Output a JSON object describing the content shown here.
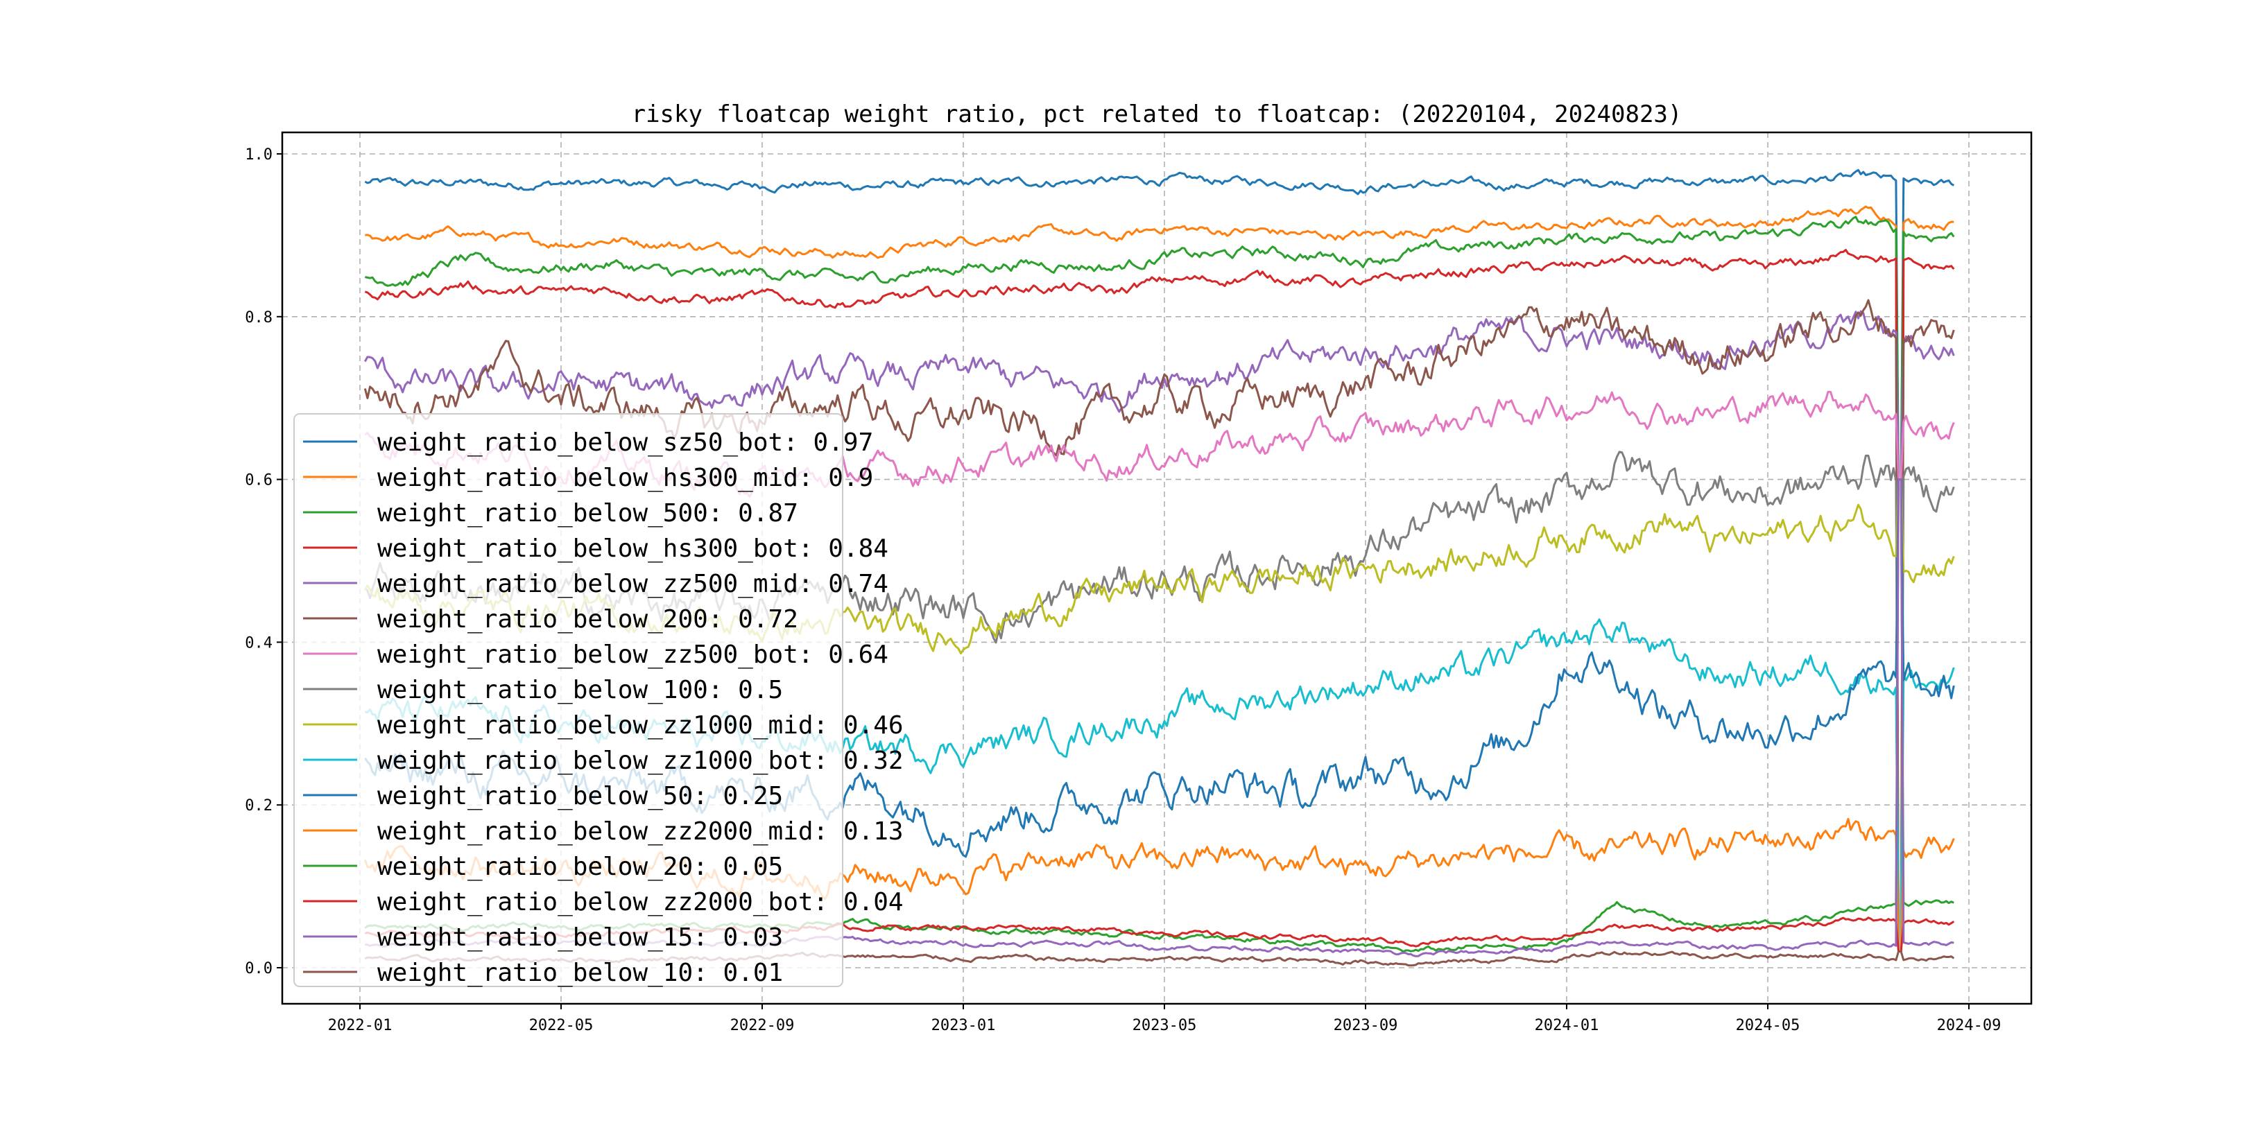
{
  "chart_data": {
    "type": "line",
    "title": "risky floatcap weight ratio, pct related to floatcap: (20220104, 20240823)",
    "xlabel": "",
    "ylabel": "",
    "ylim": [
      -0.045,
      1.055
    ],
    "xlim": [
      "2021-11-01",
      "2024-10-10"
    ],
    "grid": true,
    "legend_placement": "center-left",
    "x_ticks": [
      "2022-01",
      "2022-05",
      "2022-09",
      "2023-01",
      "2023-05",
      "2023-09",
      "2024-01",
      "2024-05",
      "2024-09"
    ],
    "y_ticks": [
      "0.0",
      "0.2",
      "0.4",
      "0.6",
      "0.8",
      "1.0"
    ],
    "x": [
      "2022-01",
      "2022-02",
      "2022-03",
      "2022-04",
      "2022-05",
      "2022-06",
      "2022-07",
      "2022-08",
      "2022-09",
      "2022-10",
      "2022-11",
      "2022-12",
      "2023-01",
      "2023-02",
      "2023-03",
      "2023-04",
      "2023-05",
      "2023-06",
      "2023-07",
      "2023-08",
      "2023-09",
      "2023-10",
      "2023-11",
      "2023-12",
      "2024-01",
      "2024-02",
      "2024-03",
      "2024-04",
      "2024-05",
      "2024-06",
      "2024-07",
      "2024-08"
    ],
    "series": [
      {
        "name": "weight_ratio_below_sz50_bot",
        "legend_value": "0.97",
        "color": "#1f77b4",
        "values": [
          0.965,
          0.963,
          0.965,
          0.962,
          0.964,
          0.963,
          0.964,
          0.962,
          0.961,
          0.963,
          0.96,
          0.962,
          0.963,
          0.965,
          0.966,
          0.967,
          0.968,
          0.967,
          0.966,
          0.964,
          0.958,
          0.962,
          0.963,
          0.961,
          0.964,
          0.966,
          0.967,
          0.965,
          0.966,
          0.969,
          0.972,
          0.962
        ]
      },
      {
        "name": "weight_ratio_below_hs300_mid",
        "legend_value": "0.9",
        "color": "#ff7f0e",
        "values": [
          0.9,
          0.895,
          0.905,
          0.895,
          0.89,
          0.895,
          0.89,
          0.885,
          0.885,
          0.88,
          0.875,
          0.885,
          0.895,
          0.9,
          0.905,
          0.895,
          0.91,
          0.905,
          0.905,
          0.9,
          0.9,
          0.905,
          0.91,
          0.91,
          0.91,
          0.915,
          0.92,
          0.915,
          0.915,
          0.925,
          0.93,
          0.915
        ]
      },
      {
        "name": "weight_ratio_below_500",
        "legend_value": "0.87",
        "color": "#2ca02c",
        "values": [
          0.85,
          0.845,
          0.87,
          0.86,
          0.86,
          0.865,
          0.855,
          0.85,
          0.855,
          0.85,
          0.845,
          0.855,
          0.86,
          0.865,
          0.865,
          0.86,
          0.875,
          0.875,
          0.88,
          0.875,
          0.87,
          0.88,
          0.885,
          0.89,
          0.895,
          0.9,
          0.9,
          0.895,
          0.9,
          0.91,
          0.915,
          0.9
        ]
      },
      {
        "name": "weight_ratio_below_hs300_bot",
        "legend_value": "0.84",
        "color": "#d62728",
        "values": [
          0.83,
          0.825,
          0.84,
          0.83,
          0.83,
          0.835,
          0.825,
          0.82,
          0.825,
          0.82,
          0.815,
          0.825,
          0.83,
          0.835,
          0.835,
          0.83,
          0.845,
          0.845,
          0.85,
          0.845,
          0.84,
          0.85,
          0.855,
          0.86,
          0.86,
          0.87,
          0.865,
          0.86,
          0.86,
          0.87,
          0.88,
          0.86
        ]
      },
      {
        "name": "weight_ratio_below_zz500_mid",
        "legend_value": "0.74",
        "color": "#9467bd",
        "values": [
          0.74,
          0.72,
          0.715,
          0.71,
          0.72,
          0.715,
          0.71,
          0.7,
          0.715,
          0.725,
          0.73,
          0.725,
          0.735,
          0.725,
          0.715,
          0.705,
          0.735,
          0.73,
          0.74,
          0.75,
          0.755,
          0.76,
          0.775,
          0.78,
          0.775,
          0.77,
          0.765,
          0.76,
          0.77,
          0.78,
          0.79,
          0.76
        ]
      },
      {
        "name": "weight_ratio_below_200",
        "legend_value": "0.72",
        "color": "#8c564b",
        "values": [
          0.71,
          0.7,
          0.71,
          0.74,
          0.7,
          0.69,
          0.68,
          0.665,
          0.68,
          0.69,
          0.7,
          0.665,
          0.68,
          0.67,
          0.66,
          0.68,
          0.7,
          0.69,
          0.7,
          0.7,
          0.72,
          0.73,
          0.76,
          0.78,
          0.8,
          0.775,
          0.765,
          0.755,
          0.76,
          0.79,
          0.8,
          0.78
        ]
      },
      {
        "name": "weight_ratio_below_zz500_bot",
        "legend_value": "0.64",
        "color": "#e377c2",
        "values": [
          0.65,
          0.64,
          0.64,
          0.63,
          0.62,
          0.62,
          0.61,
          0.6,
          0.6,
          0.6,
          0.61,
          0.61,
          0.62,
          0.62,
          0.63,
          0.62,
          0.63,
          0.64,
          0.645,
          0.65,
          0.66,
          0.665,
          0.675,
          0.685,
          0.69,
          0.7,
          0.685,
          0.68,
          0.69,
          0.7,
          0.7,
          0.66
        ]
      },
      {
        "name": "weight_ratio_below_100",
        "legend_value": "0.5",
        "color": "#7f7f7f",
        "values": [
          0.48,
          0.47,
          0.47,
          0.46,
          0.46,
          0.45,
          0.45,
          0.44,
          0.45,
          0.46,
          0.46,
          0.45,
          0.44,
          0.43,
          0.45,
          0.47,
          0.48,
          0.47,
          0.49,
          0.5,
          0.51,
          0.54,
          0.55,
          0.56,
          0.58,
          0.62,
          0.6,
          0.59,
          0.58,
          0.59,
          0.62,
          0.59
        ]
      },
      {
        "name": "weight_ratio_below_zz1000_mid",
        "legend_value": "0.46",
        "color": "#bcbd22",
        "values": [
          0.46,
          0.45,
          0.45,
          0.44,
          0.44,
          0.43,
          0.43,
          0.42,
          0.42,
          0.42,
          0.42,
          0.41,
          0.42,
          0.43,
          0.45,
          0.46,
          0.47,
          0.47,
          0.48,
          0.48,
          0.49,
          0.5,
          0.5,
          0.52,
          0.53,
          0.54,
          0.55,
          0.52,
          0.53,
          0.54,
          0.55,
          0.5
        ]
      },
      {
        "name": "weight_ratio_below_zz1000_bot",
        "legend_value": "0.32",
        "color": "#17becf",
        "values": [
          0.32,
          0.31,
          0.31,
          0.3,
          0.3,
          0.29,
          0.29,
          0.28,
          0.28,
          0.28,
          0.27,
          0.27,
          0.27,
          0.28,
          0.29,
          0.3,
          0.31,
          0.32,
          0.33,
          0.34,
          0.35,
          0.36,
          0.36,
          0.38,
          0.4,
          0.42,
          0.38,
          0.36,
          0.36,
          0.37,
          0.36,
          0.35
        ]
      },
      {
        "name": "weight_ratio_below_50",
        "legend_value": "0.25",
        "color": "#1f77b4",
        "values": [
          0.25,
          0.24,
          0.24,
          0.23,
          0.23,
          0.22,
          0.22,
          0.22,
          0.21,
          0.22,
          0.22,
          0.2,
          0.18,
          0.19,
          0.2,
          0.21,
          0.22,
          0.23,
          0.22,
          0.21,
          0.24,
          0.23,
          0.25,
          0.28,
          0.38,
          0.37,
          0.31,
          0.3,
          0.29,
          0.31,
          0.35,
          0.34
        ]
      },
      {
        "name": "weight_ratio_below_zz2000_mid",
        "legend_value": "0.13",
        "color": "#ff7f0e",
        "values": [
          0.13,
          0.13,
          0.13,
          0.12,
          0.12,
          0.12,
          0.12,
          0.11,
          0.11,
          0.115,
          0.115,
          0.11,
          0.12,
          0.12,
          0.14,
          0.13,
          0.13,
          0.14,
          0.13,
          0.13,
          0.12,
          0.13,
          0.14,
          0.14,
          0.14,
          0.14,
          0.15,
          0.15,
          0.16,
          0.16,
          0.17,
          0.14
        ]
      },
      {
        "name": "weight_ratio_below_20",
        "legend_value": "0.05",
        "color": "#2ca02c",
        "values": [
          0.05,
          0.05,
          0.05,
          0.05,
          0.05,
          0.05,
          0.05,
          0.05,
          0.05,
          0.055,
          0.055,
          0.05,
          0.05,
          0.045,
          0.045,
          0.04,
          0.04,
          0.035,
          0.035,
          0.03,
          0.025,
          0.02,
          0.025,
          0.025,
          0.03,
          0.08,
          0.06,
          0.05,
          0.055,
          0.06,
          0.075,
          0.08
        ]
      },
      {
        "name": "weight_ratio_below_zz2000_bot",
        "legend_value": "0.04",
        "color": "#d62728",
        "values": [
          0.04,
          0.04,
          0.04,
          0.04,
          0.04,
          0.045,
          0.045,
          0.045,
          0.045,
          0.05,
          0.05,
          0.05,
          0.05,
          0.05,
          0.05,
          0.045,
          0.045,
          0.04,
          0.04,
          0.035,
          0.035,
          0.03,
          0.035,
          0.035,
          0.04,
          0.05,
          0.05,
          0.045,
          0.05,
          0.055,
          0.06,
          0.055
        ]
      },
      {
        "name": "weight_ratio_below_15",
        "legend_value": "0.03",
        "color": "#9467bd",
        "values": [
          0.03,
          0.03,
          0.03,
          0.03,
          0.03,
          0.03,
          0.03,
          0.03,
          0.03,
          0.035,
          0.035,
          0.03,
          0.03,
          0.03,
          0.03,
          0.03,
          0.025,
          0.025,
          0.025,
          0.02,
          0.02,
          0.015,
          0.02,
          0.02,
          0.025,
          0.03,
          0.03,
          0.025,
          0.025,
          0.03,
          0.03,
          0.03
        ]
      },
      {
        "name": "weight_ratio_below_10",
        "legend_value": "0.01",
        "color": "#8c564b",
        "values": [
          0.01,
          0.01,
          0.01,
          0.01,
          0.01,
          0.01,
          0.012,
          0.012,
          0.012,
          0.015,
          0.015,
          0.012,
          0.012,
          0.012,
          0.01,
          0.01,
          0.01,
          0.01,
          0.01,
          0.008,
          0.008,
          0.006,
          0.008,
          0.01,
          0.012,
          0.02,
          0.018,
          0.015,
          0.015,
          0.015,
          0.015,
          0.01
        ]
      }
    ]
  }
}
